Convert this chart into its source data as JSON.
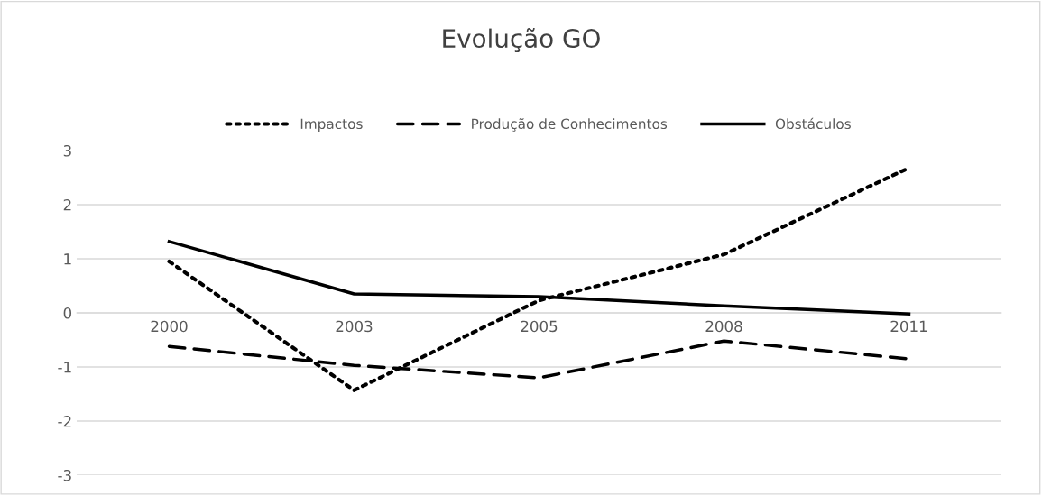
{
  "chart_data": {
    "type": "line",
    "title": "Evolução GO",
    "categories": [
      "2000",
      "2003",
      "2005",
      "2008",
      "2011"
    ],
    "series": [
      {
        "name": "Impactos",
        "color": "#000000",
        "line_style": "dotted",
        "values": [
          0.95,
          -1.43,
          0.23,
          1.08,
          2.68
        ]
      },
      {
        "name": "Produção de Conhecimentos",
        "color": "#000000",
        "line_style": "dashed",
        "values": [
          -0.62,
          -0.97,
          -1.2,
          -0.52,
          -0.85
        ]
      },
      {
        "name": "Obstáculos",
        "color": "#000000",
        "line_style": "solid",
        "values": [
          1.32,
          0.35,
          0.3,
          0.13,
          -0.02
        ]
      }
    ],
    "ylim": [
      -3,
      3
    ],
    "yticks": [
      -3,
      -2,
      -1,
      0,
      1,
      2,
      3
    ],
    "grid": "y",
    "legend": "top",
    "marker": "none"
  }
}
